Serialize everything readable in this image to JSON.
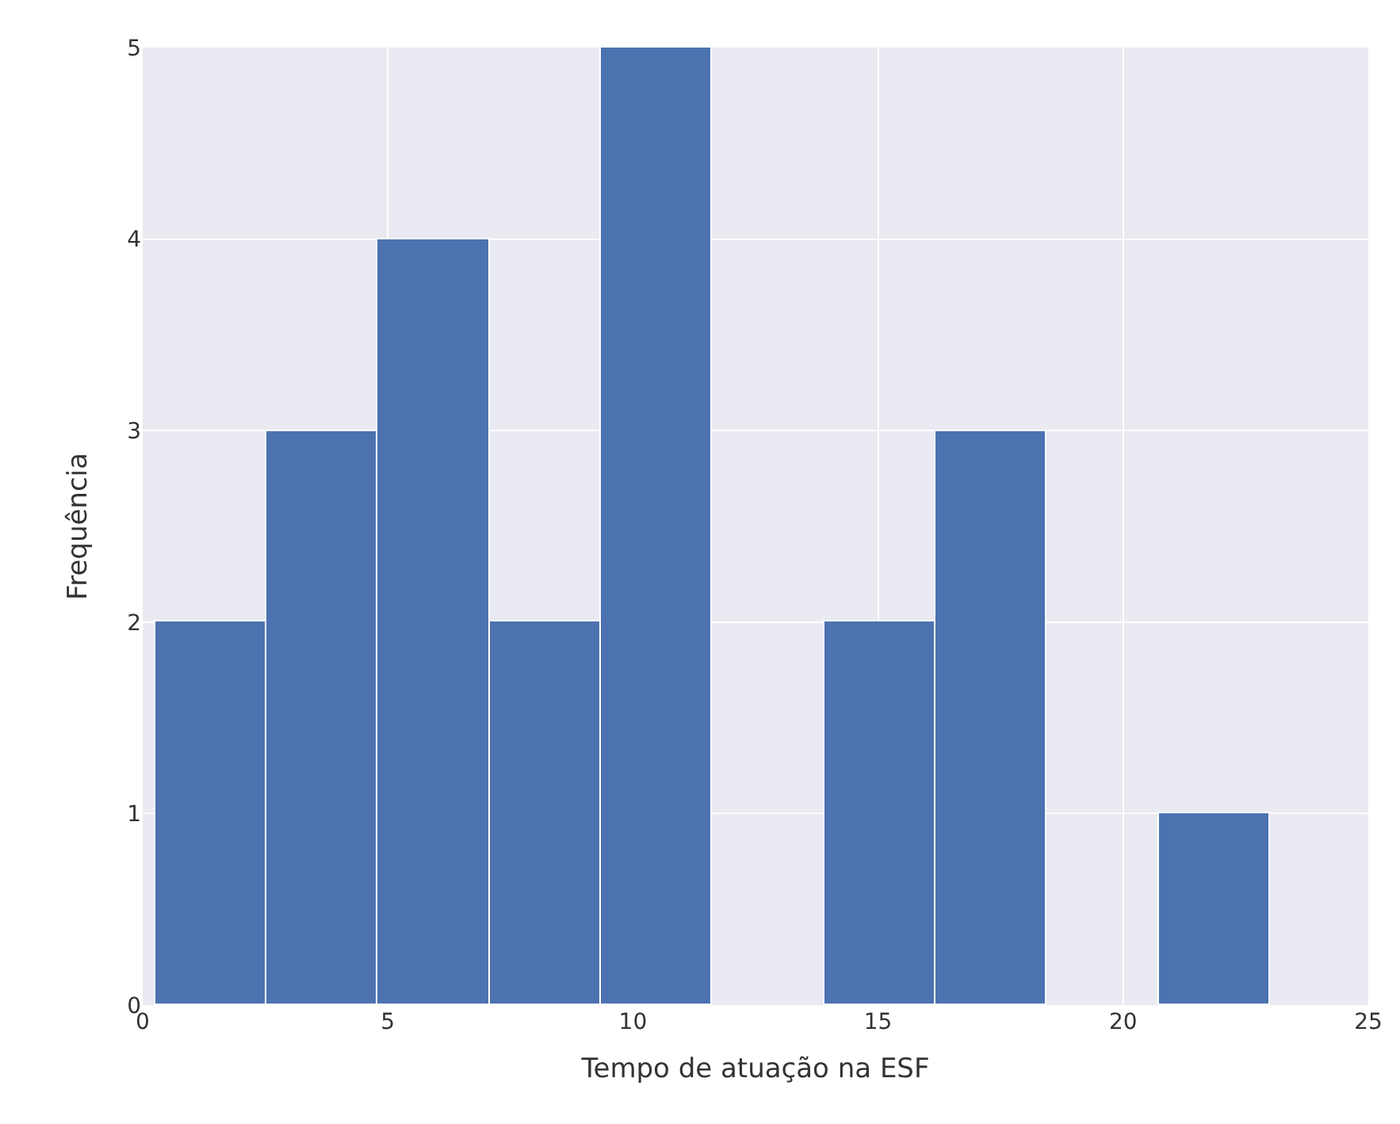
{
  "chart_data": {
    "type": "histogram",
    "xlabel": "Tempo de atuação na ESF",
    "ylabel": "Frequência",
    "bins": [
      0.25,
      2.525,
      4.8,
      7.075,
      9.35,
      11.625,
      13.9,
      16.175,
      18.45,
      20.725,
      23
    ],
    "values": [
      2,
      3,
      4,
      2,
      5,
      0,
      2,
      3,
      0,
      1
    ],
    "color": "#4c72b0",
    "xlim": [
      0,
      25
    ],
    "xticks": [
      0,
      5,
      10,
      15,
      20,
      25
    ],
    "ylim": [
      0,
      5
    ],
    "yticks": [
      0,
      1,
      2,
      3,
      4,
      5
    ],
    "grid": true
  }
}
